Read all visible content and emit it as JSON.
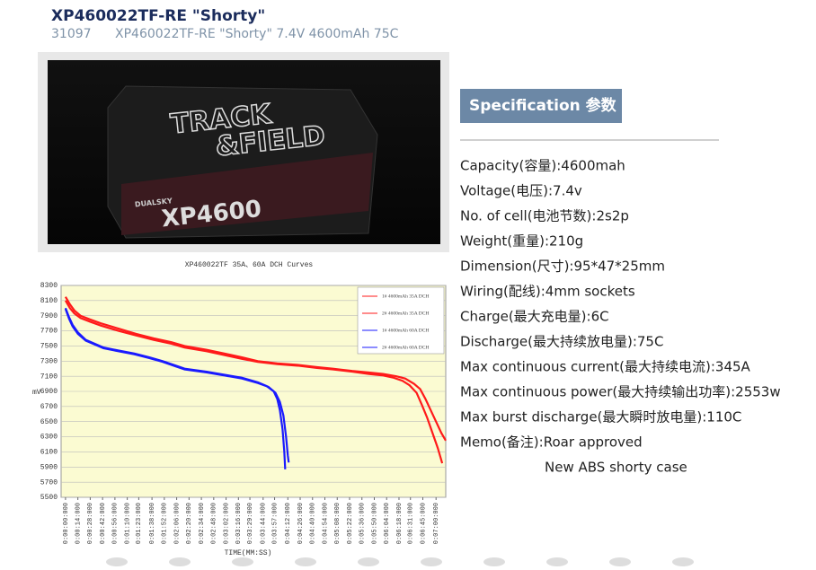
{
  "header": {
    "title": "XP460022TF-RE \"Shorty\"",
    "code": "31097",
    "subtitle": "XP460022TF-RE \"Shorty\" 7.4V 4600mAh 75C"
  },
  "image": {
    "texts": [
      "TRACK",
      "&FIELD",
      "DUALSKY",
      "XP4600"
    ]
  },
  "chart_data": {
    "type": "line",
    "title": "XP460022TF 35A、60A DCH Curves",
    "x_label": "TIME(MM:SS)",
    "y_label": "mV",
    "xlim": [
      -5,
      431
    ],
    "ylim": [
      5500,
      8300
    ],
    "yticks": [
      5500,
      5700,
      5900,
      6100,
      6300,
      6500,
      6700,
      6900,
      7100,
      7300,
      7500,
      7700,
      7900,
      8100,
      8300
    ],
    "xticks": [
      {
        "value": 0,
        "label": "0:00:00:000"
      },
      {
        "value": 14,
        "label": "0:00:14:000"
      },
      {
        "value": 28,
        "label": "0:00:28:000"
      },
      {
        "value": 42,
        "label": "0:00:42:000"
      },
      {
        "value": 56,
        "label": "0:00:56:000"
      },
      {
        "value": 70,
        "label": "0:01:10:000"
      },
      {
        "value": 83,
        "label": "0:01:23:000"
      },
      {
        "value": 98,
        "label": "0:01:38:000"
      },
      {
        "value": 112,
        "label": "0:01:52:000"
      },
      {
        "value": 126,
        "label": "0:02:06:000"
      },
      {
        "value": 140,
        "label": "0:02:20:000"
      },
      {
        "value": 154,
        "label": "0:02:34:000"
      },
      {
        "value": 168,
        "label": "0:02:48:000"
      },
      {
        "value": 182,
        "label": "0:03:02:000"
      },
      {
        "value": 196,
        "label": "0:03:16:000"
      },
      {
        "value": 209,
        "label": "0:03:29:000"
      },
      {
        "value": 224,
        "label": "0:03:44:000"
      },
      {
        "value": 237,
        "label": "0:03:57:000"
      },
      {
        "value": 252,
        "label": "0:04:12:000"
      },
      {
        "value": 266,
        "label": "0:04:26:000"
      },
      {
        "value": 280,
        "label": "0:04:40:000"
      },
      {
        "value": 294,
        "label": "0:04:54:000"
      },
      {
        "value": 308,
        "label": "0:05:08:000"
      },
      {
        "value": 322,
        "label": "0:05:22:000"
      },
      {
        "value": 336,
        "label": "0:05:36:000"
      },
      {
        "value": 350,
        "label": "0:05:50:000"
      },
      {
        "value": 364,
        "label": "0:06:04:000"
      },
      {
        "value": 378,
        "label": "0:06:18:000"
      },
      {
        "value": 391,
        "label": "0:06:31:000"
      },
      {
        "value": 405,
        "label": "0:06:45:000"
      },
      {
        "value": 420,
        "label": "0:07:00:000"
      }
    ],
    "grid": true,
    "legend": "upper-right",
    "series": [
      {
        "name": "1# 4600mAh 35A DCH",
        "color": "#ff1a1a",
        "x": [
          0,
          5,
          10,
          17,
          28,
          40,
          60,
          80,
          100,
          120,
          135,
          160,
          180,
          200,
          218,
          240,
          263,
          285,
          303,
          325,
          344,
          360,
          375,
          385,
          395,
          402,
          408,
          414,
          420,
          426,
          431
        ],
        "values": [
          8150,
          8050,
          7970,
          7900,
          7850,
          7800,
          7730,
          7660,
          7600,
          7550,
          7500,
          7450,
          7400,
          7350,
          7300,
          7270,
          7250,
          7220,
          7200,
          7170,
          7150,
          7130,
          7100,
          7070,
          7000,
          6930,
          6800,
          6650,
          6500,
          6350,
          6250
        ]
      },
      {
        "name": "2# 4600mAh 35A DCH",
        "color": "#ff1a1a",
        "x": [
          0,
          5,
          10,
          17,
          28,
          40,
          60,
          80,
          100,
          120,
          135,
          160,
          180,
          200,
          218,
          240,
          263,
          285,
          303,
          325,
          344,
          360,
          372,
          382,
          390,
          398,
          404,
          410,
          416,
          422,
          427
        ],
        "values": [
          8100,
          8000,
          7930,
          7870,
          7820,
          7770,
          7700,
          7640,
          7580,
          7530,
          7480,
          7430,
          7380,
          7330,
          7290,
          7260,
          7240,
          7210,
          7190,
          7160,
          7130,
          7110,
          7080,
          7040,
          6980,
          6880,
          6720,
          6550,
          6350,
          6150,
          5950
        ]
      },
      {
        "name": "1# 4600mAh 60A DCH",
        "color": "#1a1aff",
        "x": [
          0,
          4,
          8,
          14,
          23,
          33,
          43,
          60,
          78,
          95,
          110,
          125,
          135,
          160,
          180,
          200,
          218,
          228,
          236,
          240,
          243,
          246,
          248,
          249
        ],
        "values": [
          8000,
          7880,
          7780,
          7680,
          7580,
          7530,
          7480,
          7440,
          7400,
          7350,
          7300,
          7240,
          7200,
          7160,
          7120,
          7080,
          7020,
          6970,
          6900,
          6800,
          6650,
          6400,
          6100,
          5870
        ]
      },
      {
        "name": "2# 4600mAh 60A DCH",
        "color": "#1a1aff",
        "x": [
          0,
          4,
          8,
          14,
          23,
          33,
          43,
          60,
          78,
          95,
          110,
          125,
          135,
          160,
          180,
          200,
          218,
          230,
          238,
          243,
          247,
          250,
          252,
          253
        ],
        "values": [
          7990,
          7860,
          7760,
          7660,
          7570,
          7520,
          7470,
          7430,
          7390,
          7340,
          7290,
          7230,
          7190,
          7150,
          7110,
          7070,
          7010,
          6960,
          6880,
          6760,
          6580,
          6300,
          6050,
          5960
        ]
      }
    ]
  },
  "specification": {
    "heading": "Specification 参数",
    "items": [
      "Capacity(容量):4600mah",
      "Voltage(电压):7.4v",
      "No. of cell(电池节数):2s2p",
      "Weight(重量):210g",
      "Dimension(尺寸):95*47*25mm",
      "Wiring(配线):4mm sockets",
      "Charge(最大充电量):6C",
      "Discharge(最大持续放电量):75C",
      "Max continuous current(最大持续电流):345A",
      "Max continuous power(最大持续输出功率):2553w",
      "Max burst discharge(最大瞬时放电量):110C",
      "Memo(备注):Roar approved"
    ],
    "note": "New ABS shorty case"
  }
}
